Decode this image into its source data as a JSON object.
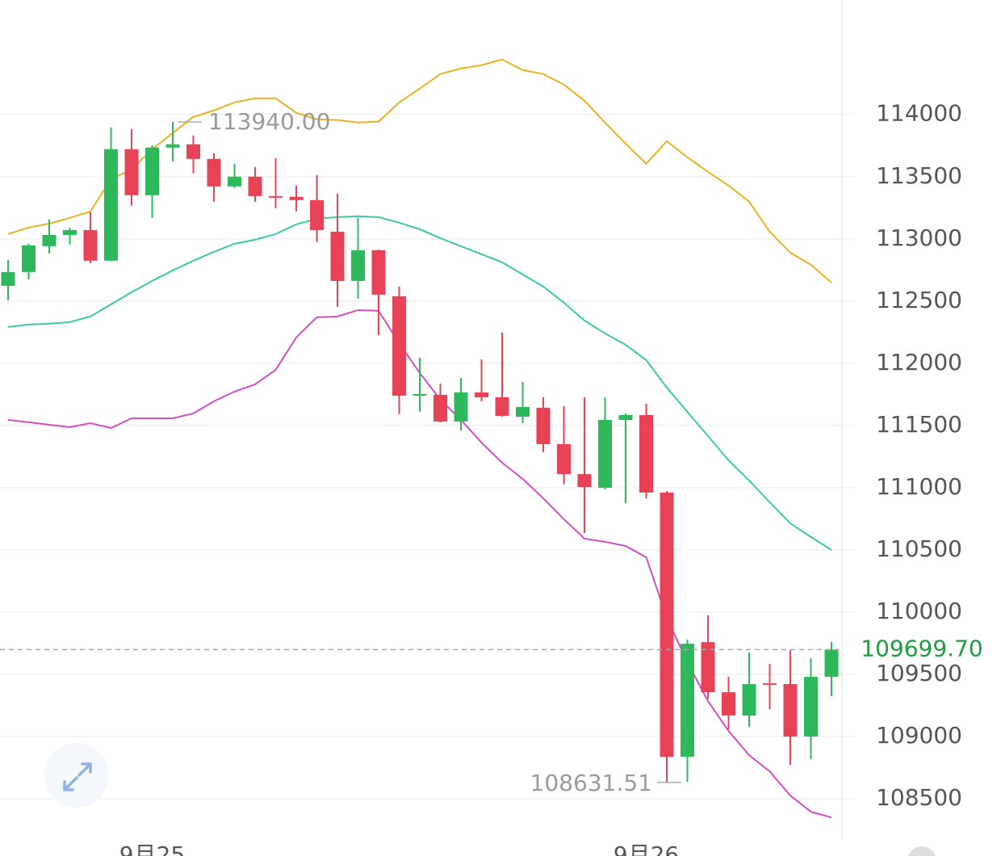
{
  "chart_data": {
    "type": "candlestick",
    "categories": [
      null,
      null,
      null,
      null,
      null,
      null,
      null,
      "9月25",
      null,
      null,
      null,
      null,
      null,
      null,
      null,
      null,
      null,
      null,
      null,
      null,
      null,
      null,
      null,
      null,
      null,
      null,
      null,
      null,
      null,
      null,
      null,
      "9月26",
      null,
      null,
      null,
      null,
      null,
      null,
      null,
      null,
      null
    ],
    "open": [
      112623,
      112734,
      112941,
      113032,
      113071,
      112825,
      113721,
      113351,
      113734,
      113760,
      113643,
      113422,
      113500,
      113344,
      113338,
      113312,
      113058,
      112662,
      112909,
      112539,
      111740,
      111747,
      111532,
      111766,
      111727,
      111571,
      111643,
      111350,
      111110,
      111000,
      111545,
      111584,
      110961,
      108837,
      109759,
      109357,
      109169,
      109428,
      109422,
      109000,
      109480
    ],
    "high": [
      112831,
      112961,
      113156,
      113091,
      113214,
      113896,
      113883,
      113753,
      113940,
      113831,
      113688,
      113604,
      113578,
      113649,
      113429,
      113513,
      113364,
      113169,
      112915,
      112617,
      112045,
      111838,
      111883,
      112032,
      112247,
      111851,
      111727,
      111656,
      111727,
      111727,
      111597,
      111675,
      110974,
      109779,
      109974,
      109480,
      109675,
      109584,
      109695,
      109630,
      109759
    ],
    "low": [
      112506,
      112675,
      112883,
      112955,
      112805,
      112820,
      113266,
      113169,
      113623,
      113526,
      113299,
      113409,
      113299,
      113247,
      113221,
      112974,
      112454,
      112519,
      112227,
      111591,
      111610,
      111526,
      111461,
      111695,
      111571,
      111519,
      111286,
      111026,
      110636,
      110987,
      110876,
      110915,
      108631.51,
      108636,
      109305,
      109058,
      109078,
      109221,
      108772,
      108818,
      109324
    ],
    "close": [
      112734,
      112948,
      113032,
      113071,
      112825,
      113721,
      113351,
      113734,
      113760,
      113643,
      113422,
      113500,
      113344,
      113331,
      113312,
      113071,
      112662,
      112909,
      112552,
      111740,
      111753,
      111532,
      111766,
      111727,
      111578,
      111649,
      111350,
      111110,
      111006,
      111545,
      111584,
      110961,
      108837,
      109746,
      109357,
      109169,
      109422,
      109416,
      109000,
      109480,
      109699.7
    ],
    "up_color": "#2eb85c",
    "down_color": "#e84256",
    "bands": [
      {
        "color": "#e8b322",
        "values": [
          113039,
          113091,
          113123,
          113169,
          113221,
          113480,
          113558,
          113721,
          113851,
          113981,
          114032,
          114097,
          114130,
          114130,
          114013,
          113961,
          113955,
          113935,
          113942,
          114097,
          114208,
          114325,
          114370,
          114396,
          114442,
          114357,
          114325,
          114240,
          114110,
          113935,
          113766,
          113604,
          113786,
          113656,
          113539,
          113429,
          113299,
          113058,
          112890,
          112792,
          112649
        ]
      },
      {
        "color": "#3cc9a4",
        "values": [
          112292,
          112312,
          112318,
          112331,
          112376,
          112474,
          112571,
          112662,
          112747,
          112825,
          112896,
          112961,
          112993,
          113039,
          113117,
          113162,
          113175,
          113182,
          113175,
          113130,
          113078,
          113006,
          112941,
          112877,
          112812,
          112714,
          112617,
          112487,
          112344,
          112240,
          112149,
          112026,
          111805,
          111610,
          111415,
          111221,
          111058,
          110883,
          110714,
          110604,
          110500
        ]
      },
      {
        "color": "#d34fc0",
        "values": [
          111545,
          111526,
          111506,
          111487,
          111519,
          111480,
          111558,
          111558,
          111558,
          111597,
          111695,
          111773,
          111831,
          111948,
          112208,
          112370,
          112376,
          112428,
          112422,
          112162,
          111922,
          111708,
          111545,
          111363,
          111201,
          111071,
          110915,
          110747,
          110591,
          110565,
          110532,
          110441,
          109954,
          109597,
          109285,
          109045,
          108850,
          108720,
          108526,
          108396,
          108350
        ]
      }
    ],
    "ylim": [
      108170,
      114920
    ],
    "yticks": [
      108500,
      109000,
      109500,
      110000,
      110500,
      111000,
      111500,
      112000,
      112500,
      113000,
      113500,
      114000
    ],
    "grid": true,
    "annotations": [
      {
        "index": 8,
        "value": 113940,
        "label": "113940.00"
      },
      {
        "index": 32,
        "value": 108631.51,
        "label": "108631.51"
      }
    ],
    "current_price": {
      "value": 109699.7,
      "label": "109699.70",
      "color": "#1f9d3f"
    }
  }
}
